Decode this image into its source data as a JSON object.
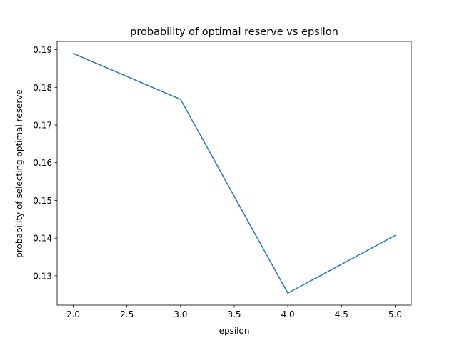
{
  "chart_data": {
    "type": "line",
    "title": "probability of optimal reserve vs epsilon",
    "xlabel": "epsilon",
    "ylabel": "probability of selecting optimal reserve",
    "xlim": [
      1.85,
      5.15
    ],
    "ylim": [
      0.1222,
      0.1922
    ],
    "x_ticks": [
      2.0,
      2.5,
      3.0,
      3.5,
      4.0,
      4.5,
      5.0
    ],
    "x_tick_labels": [
      "2.0",
      "2.5",
      "3.0",
      "3.5",
      "4.0",
      "4.5",
      "5.0"
    ],
    "y_ticks": [
      0.13,
      0.14,
      0.15,
      0.16,
      0.17,
      0.18,
      0.19
    ],
    "y_tick_labels": [
      "0.13",
      "0.14",
      "0.15",
      "0.16",
      "0.17",
      "0.18",
      "0.19"
    ],
    "grid": false,
    "series": [
      {
        "color": "#1f77b4",
        "x": [
          2.0,
          3.0,
          4.0,
          5.0
        ],
        "y": [
          0.189,
          0.1768,
          0.1254,
          0.1407
        ]
      }
    ]
  }
}
